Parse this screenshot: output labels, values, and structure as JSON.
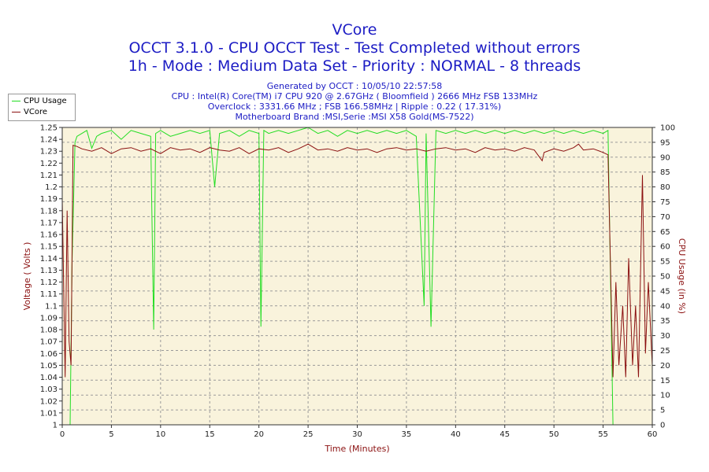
{
  "header": {
    "title1": "VCore",
    "title2": "OCCT 3.1.0 - CPU OCCT Test - Test Completed without errors",
    "title3": "1h - Mode : Medium Data Set - Priority : NORMAL - 8 threads",
    "info1": "Generated by OCCT : 10/05/10 22:57:58",
    "info2": "CPU : Intel(R) Core(TM) i7 CPU 920 @ 2.67GHz ( Bloomfield ) 2666 MHz FSB 133MHz",
    "info3": "Overclock : 3331.66 MHz ; FSB 166.58MHz | Ripple : 0.22 ( 17.31%)",
    "info4": "Motherboard Brand :MSI,Serie :MSI X58 Gold(MS-7522)"
  },
  "colors": {
    "cpu_usage": "#22dd22",
    "vcore": "#8b1010",
    "plot_bg": "#f9f3dc",
    "title": "#1c1cc4",
    "axis_label": "#8b1010"
  },
  "chart_data": {
    "type": "line",
    "xlabel": "Time (Minutes)",
    "ylabel_left": "Voltage ( Volts )",
    "ylabel_right": "CPU Usage (in %)",
    "xlim": [
      0,
      60
    ],
    "ylim_left": [
      1.0,
      1.25
    ],
    "ylim_right": [
      0,
      100
    ],
    "x_ticks": [
      0,
      5,
      10,
      15,
      20,
      25,
      30,
      35,
      40,
      45,
      50,
      55,
      60
    ],
    "y_left_ticks": [
      1,
      1.01,
      1.02,
      1.03,
      1.04,
      1.05,
      1.06,
      1.07,
      1.08,
      1.09,
      1.1,
      1.11,
      1.12,
      1.13,
      1.14,
      1.15,
      1.16,
      1.17,
      1.18,
      1.19,
      1.2,
      1.21,
      1.22,
      1.23,
      1.24,
      1.25
    ],
    "y_right_ticks": [
      0,
      5,
      10,
      15,
      20,
      25,
      30,
      35,
      40,
      45,
      50,
      55,
      60,
      65,
      70,
      75,
      80,
      85,
      90,
      95,
      100
    ],
    "grid": true,
    "legend_position": "top-left",
    "series": [
      {
        "name": "CPU Usage",
        "axis": "right",
        "x": [
          0.8,
          1.0,
          1.3,
          1.5,
          2.0,
          2.5,
          3.0,
          3.5,
          4.0,
          5.0,
          6.0,
          7.0,
          8.0,
          9.0,
          9.3,
          9.5,
          10.0,
          11.0,
          12.0,
          13.0,
          14.0,
          15.0,
          15.5,
          16.0,
          17.0,
          18.0,
          19.0,
          20.0,
          20.2,
          20.5,
          21.0,
          22.0,
          23.0,
          24.0,
          25.0,
          26.0,
          27.0,
          28.0,
          29.0,
          30.0,
          31.0,
          32.0,
          33.0,
          34.0,
          35.0,
          36.0,
          36.8,
          37.0,
          37.5,
          38.0,
          39.0,
          40.0,
          41.0,
          42.0,
          43.0,
          44.0,
          45.0,
          46.0,
          47.0,
          48.0,
          49.0,
          50.0,
          51.0,
          52.0,
          53.0,
          54.0,
          55.0,
          55.5,
          56.0
        ],
        "y": [
          0,
          55,
          95,
          97,
          98,
          99,
          93,
          97,
          98,
          99,
          96,
          99,
          98,
          97,
          32,
          98,
          99,
          97,
          98,
          99,
          98,
          99,
          80,
          98,
          99,
          97,
          99,
          98,
          33,
          99,
          98,
          99,
          98,
          99,
          100,
          98,
          99,
          97,
          99,
          98,
          99,
          98,
          99,
          98,
          99,
          97,
          40,
          98,
          33,
          99,
          98,
          99,
          98,
          99,
          98,
          99,
          98,
          99,
          98,
          99,
          98,
          99,
          98,
          99,
          98,
          99,
          98,
          99,
          0
        ]
      },
      {
        "name": "VCore",
        "axis": "left",
        "x": [
          0,
          0.3,
          0.5,
          0.7,
          0.9,
          1.1,
          1.5,
          2,
          3,
          4,
          5,
          6,
          7,
          8,
          9,
          10,
          11,
          12,
          13,
          14,
          15,
          16,
          17,
          18,
          19,
          20,
          21,
          22,
          23,
          24,
          25,
          26,
          27,
          28,
          29,
          30,
          31,
          32,
          33,
          34,
          35,
          36,
          37,
          38,
          39,
          40,
          41,
          42,
          43,
          44,
          45,
          46,
          47,
          48,
          48.8,
          49,
          50,
          51,
          52,
          52.5,
          53,
          54,
          55,
          55.5,
          56,
          56.3,
          56.6,
          57,
          57.3,
          57.6,
          58,
          58.3,
          58.6,
          59,
          59.3,
          59.6,
          60
        ],
        "y": [
          1.19,
          1.04,
          1.18,
          1.07,
          1.05,
          1.235,
          1.234,
          1.232,
          1.23,
          1.233,
          1.228,
          1.232,
          1.233,
          1.23,
          1.232,
          1.228,
          1.233,
          1.231,
          1.232,
          1.229,
          1.233,
          1.231,
          1.23,
          1.233,
          1.228,
          1.232,
          1.231,
          1.233,
          1.229,
          1.232,
          1.236,
          1.231,
          1.232,
          1.23,
          1.233,
          1.231,
          1.232,
          1.229,
          1.232,
          1.233,
          1.231,
          1.232,
          1.23,
          1.232,
          1.233,
          1.231,
          1.232,
          1.229,
          1.233,
          1.231,
          1.232,
          1.23,
          1.233,
          1.231,
          1.222,
          1.229,
          1.232,
          1.23,
          1.233,
          1.236,
          1.231,
          1.232,
          1.229,
          1.227,
          1.04,
          1.12,
          1.05,
          1.1,
          1.04,
          1.14,
          1.05,
          1.1,
          1.04,
          1.21,
          1.06,
          1.12,
          1.05
        ]
      }
    ]
  }
}
